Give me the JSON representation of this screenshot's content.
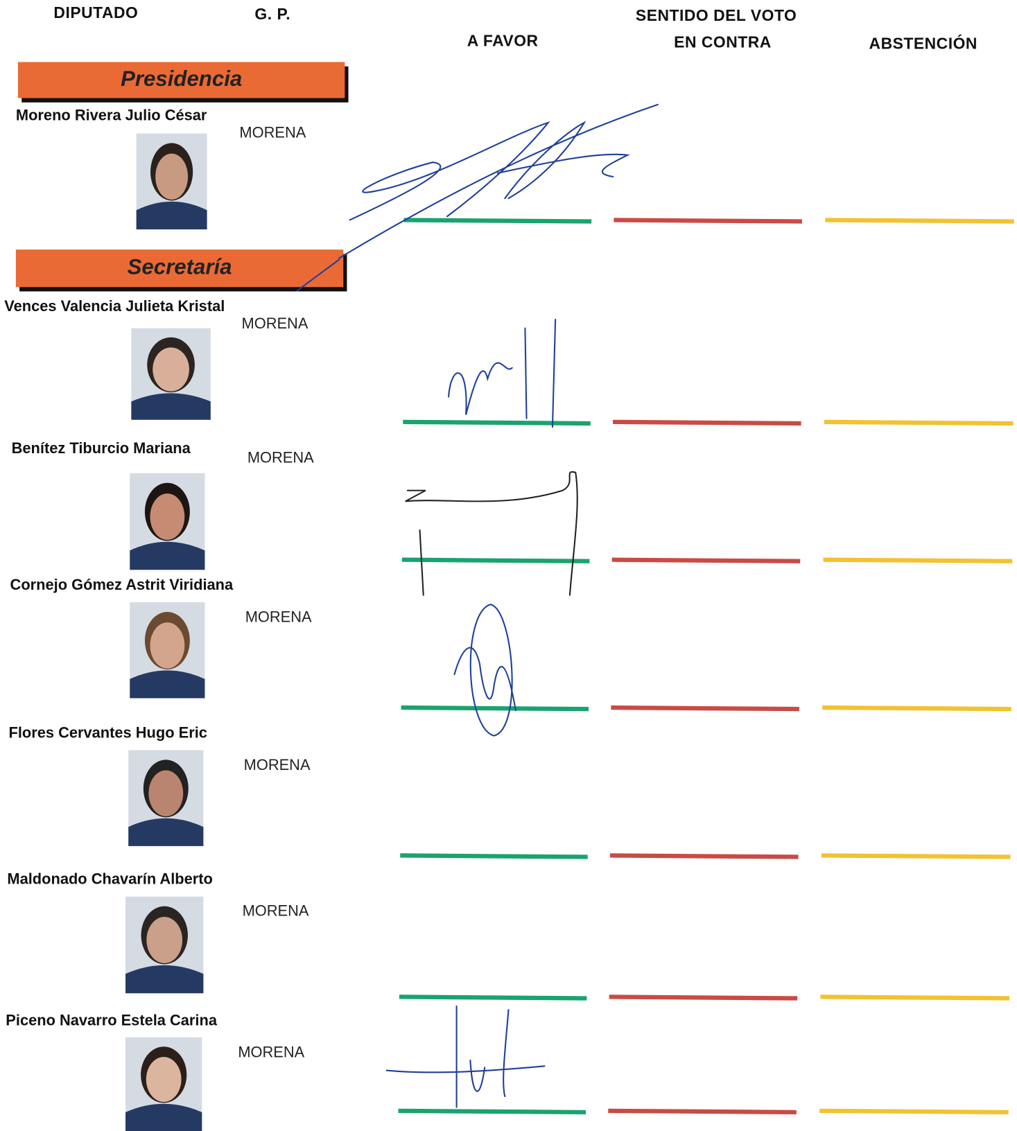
{
  "headers": {
    "diputado": "DIPUTADO",
    "gp": "G. P.",
    "sentido": "SENTIDO DEL VOTO",
    "a_favor": "A FAVOR",
    "en_contra": "EN CONTRA",
    "abstencion": "ABSTENCIÓN"
  },
  "sections": [
    {
      "title": "Presidencia",
      "members": [
        {
          "name": "Moreno Rivera Julio César",
          "party": "MORENA"
        }
      ]
    },
    {
      "title": "Secretaría",
      "members": [
        {
          "name": "Vences Valencia Julieta Kristal",
          "party": "MORENA"
        },
        {
          "name": "Benítez Tiburcio Mariana",
          "party": "MORENA"
        },
        {
          "name": "Cornejo Gómez Astrit Viridiana",
          "party": "MORENA"
        },
        {
          "name": "Flores Cervantes Hugo Eric",
          "party": "MORENA"
        },
        {
          "name": "Maldonado Chavarín Alberto",
          "party": "MORENA"
        },
        {
          "name": "Piceno Navarro Estela Carina",
          "party": "MORENA"
        }
      ]
    }
  ]
}
